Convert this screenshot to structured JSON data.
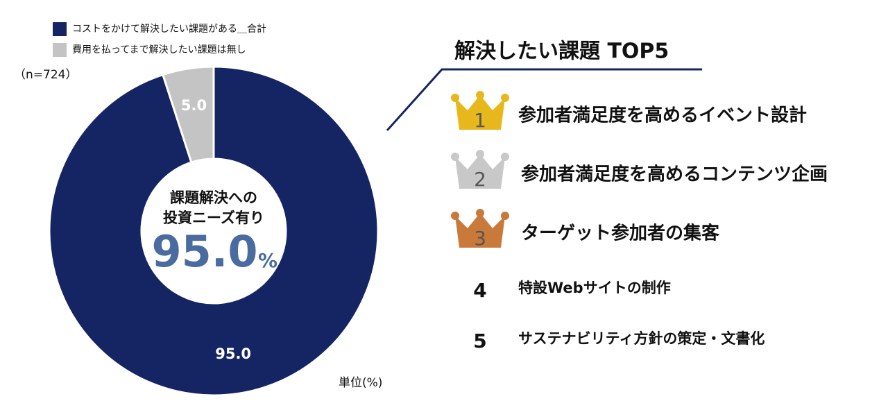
{
  "chart_data": {
    "type": "donut",
    "series": [
      {
        "name": "コストをかけて解決したい課題がある＿合計",
        "color": "#152463",
        "values": [
          95.0
        ],
        "value_labels": [
          "95.0"
        ]
      },
      {
        "name": "費用を払ってまで解決したい課題は無し",
        "color": "#c4c4c4",
        "values": [
          5.0
        ],
        "value_labels": [
          "5.0"
        ]
      }
    ],
    "note": "（n=724）",
    "unit_label": "単位(%)",
    "center_lines": [
      "課題解決への",
      "投資ニーズ有り"
    ],
    "center_figure": "95.0",
    "center_unit": "%"
  },
  "ranking": {
    "title": "解決したい課題 TOP5",
    "items": [
      {
        "rank": "1",
        "label": "参加者満足度を高めるイベント設計"
      },
      {
        "rank": "2",
        "label": "参加者満足度を高めるコンテンツ企画"
      },
      {
        "rank": "3",
        "label": "ターゲット参加者の集客"
      },
      {
        "rank": "4",
        "label": "特設Webサイトの制作"
      },
      {
        "rank": "5",
        "label": "サステナビリティ方針の策定・文書化"
      }
    ]
  }
}
